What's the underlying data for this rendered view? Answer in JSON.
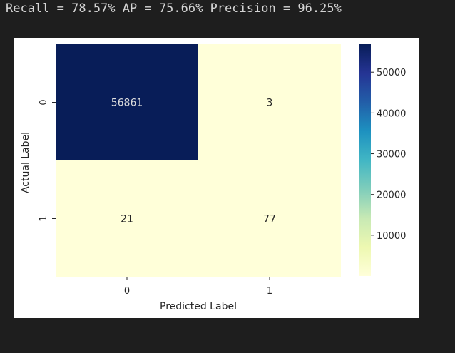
{
  "output": {
    "metrics_line": "Recall = 78.57% AP = 75.66% Precision = 96.25%"
  },
  "chart_data": {
    "type": "heatmap",
    "title": "",
    "xlabel": "Predicted Label",
    "ylabel": "Actual Label",
    "x_categories": [
      "0",
      "1"
    ],
    "y_categories": [
      "0",
      "1"
    ],
    "values": [
      [
        56861,
        3
      ],
      [
        21,
        77
      ]
    ],
    "colormap": "YlGnBu",
    "colorbar": {
      "ticks": [
        10000,
        20000,
        30000,
        40000,
        50000
      ],
      "tick_labels": [
        "10000",
        "20000",
        "30000",
        "40000",
        "50000"
      ],
      "range": [
        3,
        56861
      ]
    },
    "annotation_colors": {
      "on_dark": "#dddddd",
      "on_light": "#262626"
    }
  }
}
